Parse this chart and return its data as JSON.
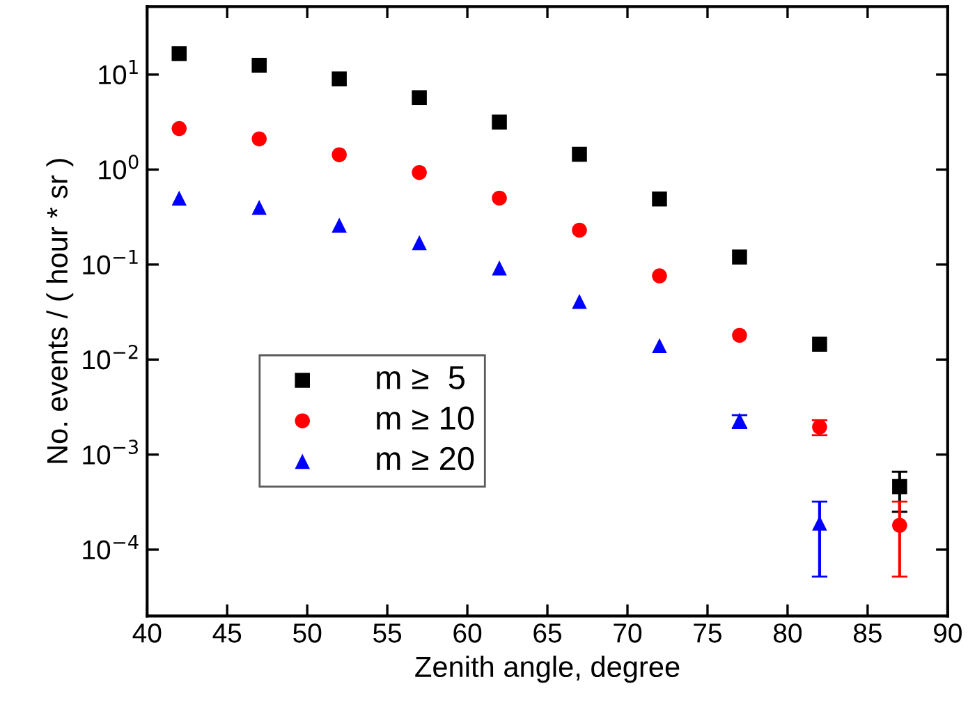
{
  "chart_data": {
    "type": "scatter",
    "xlabel": "Zenith angle, degree",
    "ylabel": "No. events / ( hour * sr )",
    "x": [
      42,
      47,
      52,
      57,
      62,
      67,
      72,
      77,
      82,
      87
    ],
    "series": [
      {
        "name": "m ≥  5",
        "color": "#000000",
        "marker": "square",
        "values": [
          16.6,
          12.5,
          9,
          5.7,
          3.16,
          1.45,
          0.49,
          0.12,
          0.0145,
          0.00046
        ],
        "errors": [
          null,
          null,
          null,
          null,
          null,
          null,
          null,
          null,
          null,
          [
            0.00025,
            0.00066
          ]
        ]
      },
      {
        "name": "m ≥ 10",
        "color": "#ff0000",
        "marker": "circle",
        "values": [
          2.7,
          2.1,
          1.43,
          0.93,
          0.5,
          0.23,
          0.076,
          0.018,
          0.00195,
          0.00018
        ],
        "errors": [
          null,
          null,
          null,
          null,
          null,
          null,
          null,
          null,
          [
            0.0016,
            0.0023
          ],
          [
            5.2e-05,
            0.00032
          ]
        ]
      },
      {
        "name": "m ≥ 20",
        "color": "#0000ff",
        "marker": "triangle",
        "values": [
          0.5,
          0.4,
          0.26,
          0.17,
          0.092,
          0.041,
          0.014,
          0.0023,
          0.00019,
          null
        ],
        "errors": [
          null,
          null,
          null,
          null,
          null,
          null,
          null,
          [
            0.0019,
            0.0026
          ],
          [
            5.2e-05,
            0.00032
          ],
          null
        ]
      }
    ],
    "log": "y",
    "xlim": [
      40,
      90
    ],
    "xticks": [
      40,
      45,
      50,
      55,
      60,
      65,
      70,
      75,
      80,
      85,
      90
    ],
    "ylim": [
      2e-05,
      52
    ],
    "yticks": [
      {
        "value": 0.0001,
        "label": "10$^{−4}$"
      },
      {
        "value": 0.001,
        "label": "10$^{−3}$"
      },
      {
        "value": 0.01,
        "label": "10$^{−2}$"
      },
      {
        "value": 0.1,
        "label": "10$^{−1}$"
      },
      {
        "value": 1,
        "label": "10$^{0}$"
      },
      {
        "value": 10,
        "label": "10$^{1}$"
      }
    ],
    "legend": "center left",
    "grid": false
  }
}
